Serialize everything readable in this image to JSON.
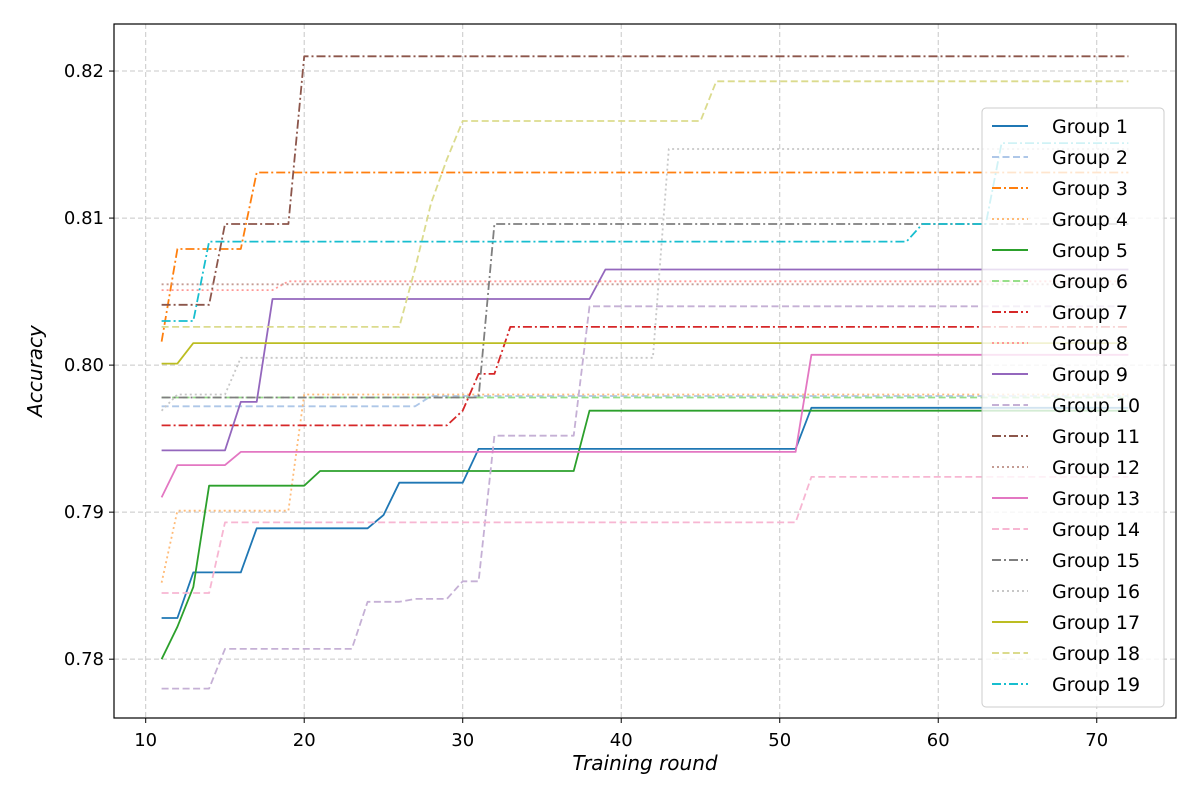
{
  "chart_data": {
    "type": "line",
    "title": "",
    "xlabel": "Training round",
    "ylabel": "Accuracy",
    "xlim": [
      8,
      75
    ],
    "ylim": [
      0.776,
      0.8232
    ],
    "xticks": [
      10,
      20,
      30,
      40,
      50,
      60,
      70
    ],
    "yticks": [
      0.78,
      0.79,
      0.8,
      0.81,
      0.82
    ],
    "ytick_labels": [
      "0.78",
      "0.79",
      "0.80",
      "0.81",
      "0.82"
    ],
    "grid": true,
    "legend_position": "right",
    "series": [
      {
        "name": "Group 1",
        "color": "#1f77b4",
        "dash": "solid",
        "points": [
          [
            11,
            0.7828
          ],
          [
            12,
            0.7828
          ],
          [
            13,
            0.7859
          ],
          [
            16,
            0.7859
          ],
          [
            17,
            0.7889
          ],
          [
            24,
            0.7889
          ],
          [
            25,
            0.7898
          ],
          [
            26,
            0.792
          ],
          [
            30,
            0.792
          ],
          [
            31,
            0.7943
          ],
          [
            51,
            0.7943
          ],
          [
            52,
            0.7971
          ],
          [
            72,
            0.7971
          ]
        ]
      },
      {
        "name": "Group 2",
        "color": "#aec7e8",
        "dash": "dashed",
        "points": [
          [
            11,
            0.7972
          ],
          [
            27,
            0.7972
          ],
          [
            28,
            0.7979
          ],
          [
            72,
            0.7979
          ]
        ]
      },
      {
        "name": "Group 3",
        "color": "#ff7f0e",
        "dash": "dashdot",
        "points": [
          [
            11,
            0.8016
          ],
          [
            12,
            0.8079
          ],
          [
            16,
            0.8079
          ],
          [
            17,
            0.8131
          ],
          [
            72,
            0.8131
          ]
        ]
      },
      {
        "name": "Group 4",
        "color": "#ffbb78",
        "dash": "dotted",
        "points": [
          [
            11,
            0.7852
          ],
          [
            12,
            0.7901
          ],
          [
            19,
            0.7901
          ],
          [
            20,
            0.798
          ],
          [
            72,
            0.798
          ]
        ]
      },
      {
        "name": "Group 5",
        "color": "#2ca02c",
        "dash": "solid",
        "points": [
          [
            11,
            0.78
          ],
          [
            12,
            0.7822
          ],
          [
            13,
            0.7849
          ],
          [
            14,
            0.7918
          ],
          [
            20,
            0.7918
          ],
          [
            21,
            0.7928
          ],
          [
            37,
            0.7928
          ],
          [
            38,
            0.7969
          ],
          [
            72,
            0.7969
          ]
        ]
      },
      {
        "name": "Group 6",
        "color": "#98df8a",
        "dash": "dashed",
        "points": [
          [
            11,
            0.7978
          ],
          [
            72,
            0.7978
          ]
        ]
      },
      {
        "name": "Group 7",
        "color": "#d62728",
        "dash": "dashdot",
        "points": [
          [
            11,
            0.7959
          ],
          [
            29,
            0.7959
          ],
          [
            30,
            0.7969
          ],
          [
            31,
            0.7994
          ],
          [
            32,
            0.7994
          ],
          [
            33,
            0.8026
          ],
          [
            72,
            0.8026
          ]
        ]
      },
      {
        "name": "Group 8",
        "color": "#ff9896",
        "dash": "dotted",
        "points": [
          [
            11,
            0.8051
          ],
          [
            18,
            0.8051
          ],
          [
            19,
            0.8057
          ],
          [
            72,
            0.8057
          ]
        ]
      },
      {
        "name": "Group 9",
        "color": "#9467bd",
        "dash": "solid",
        "points": [
          [
            11,
            0.7942
          ],
          [
            15,
            0.7942
          ],
          [
            16,
            0.7975
          ],
          [
            17,
            0.7975
          ],
          [
            18,
            0.8045
          ],
          [
            38,
            0.8045
          ],
          [
            39,
            0.8065
          ],
          [
            72,
            0.8065
          ]
        ]
      },
      {
        "name": "Group 10",
        "color": "#c5b0d5",
        "dash": "dashed",
        "points": [
          [
            11,
            0.778
          ],
          [
            14,
            0.778
          ],
          [
            15,
            0.7807
          ],
          [
            23,
            0.7807
          ],
          [
            24,
            0.7839
          ],
          [
            26,
            0.7839
          ],
          [
            27,
            0.7841
          ],
          [
            29,
            0.7841
          ],
          [
            30,
            0.7853
          ],
          [
            31,
            0.7853
          ],
          [
            32,
            0.7952
          ],
          [
            37,
            0.7952
          ],
          [
            38,
            0.804
          ],
          [
            72,
            0.804
          ]
        ]
      },
      {
        "name": "Group 11",
        "color": "#8c564b",
        "dash": "dashdot",
        "points": [
          [
            11,
            0.8041
          ],
          [
            14,
            0.8041
          ],
          [
            15,
            0.8096
          ],
          [
            19,
            0.8096
          ],
          [
            20,
            0.821
          ],
          [
            72,
            0.821
          ]
        ]
      },
      {
        "name": "Group 12",
        "color": "#c49c94",
        "dash": "dotted",
        "points": [
          [
            11,
            0.8055
          ],
          [
            72,
            0.8055
          ]
        ]
      },
      {
        "name": "Group 13",
        "color": "#e377c2",
        "dash": "solid",
        "points": [
          [
            11,
            0.791
          ],
          [
            12,
            0.7932
          ],
          [
            15,
            0.7932
          ],
          [
            16,
            0.7941
          ],
          [
            51,
            0.7941
          ],
          [
            52,
            0.8007
          ],
          [
            72,
            0.8007
          ]
        ]
      },
      {
        "name": "Group 14",
        "color": "#f7b6d2",
        "dash": "dashed",
        "points": [
          [
            11,
            0.7845
          ],
          [
            14,
            0.7845
          ],
          [
            15,
            0.7893
          ],
          [
            51,
            0.7893
          ],
          [
            52,
            0.7924
          ],
          [
            72,
            0.7924
          ]
        ]
      },
      {
        "name": "Group 15",
        "color": "#7f7f7f",
        "dash": "dashdot",
        "points": [
          [
            11,
            0.7978
          ],
          [
            31,
            0.7978
          ],
          [
            32,
            0.8096
          ],
          [
            72,
            0.8096
          ]
        ]
      },
      {
        "name": "Group 16",
        "color": "#c7c7c7",
        "dash": "dotted",
        "points": [
          [
            11,
            0.7969
          ],
          [
            12,
            0.798
          ],
          [
            15,
            0.798
          ],
          [
            16,
            0.8005
          ],
          [
            42,
            0.8005
          ],
          [
            43,
            0.8147
          ],
          [
            72,
            0.8147
          ]
        ]
      },
      {
        "name": "Group 17",
        "color": "#bcbd22",
        "dash": "solid",
        "points": [
          [
            11,
            0.8001
          ],
          [
            12,
            0.8001
          ],
          [
            13,
            0.8015
          ],
          [
            72,
            0.8015
          ]
        ]
      },
      {
        "name": "Group 18",
        "color": "#dbdb8d",
        "dash": "dashed",
        "points": [
          [
            11,
            0.8026
          ],
          [
            26,
            0.8026
          ],
          [
            27,
            0.8066
          ],
          [
            28,
            0.811
          ],
          [
            29,
            0.814
          ],
          [
            30,
            0.8166
          ],
          [
            45,
            0.8166
          ],
          [
            46,
            0.8193
          ],
          [
            72,
            0.8193
          ]
        ]
      },
      {
        "name": "Group 19",
        "color": "#17becf",
        "dash": "dashdot",
        "points": [
          [
            11,
            0.803
          ],
          [
            13,
            0.803
          ],
          [
            14,
            0.8084
          ],
          [
            58,
            0.8084
          ],
          [
            59,
            0.8096
          ],
          [
            63,
            0.8096
          ],
          [
            64,
            0.8151
          ],
          [
            72,
            0.8151
          ]
        ]
      }
    ]
  }
}
